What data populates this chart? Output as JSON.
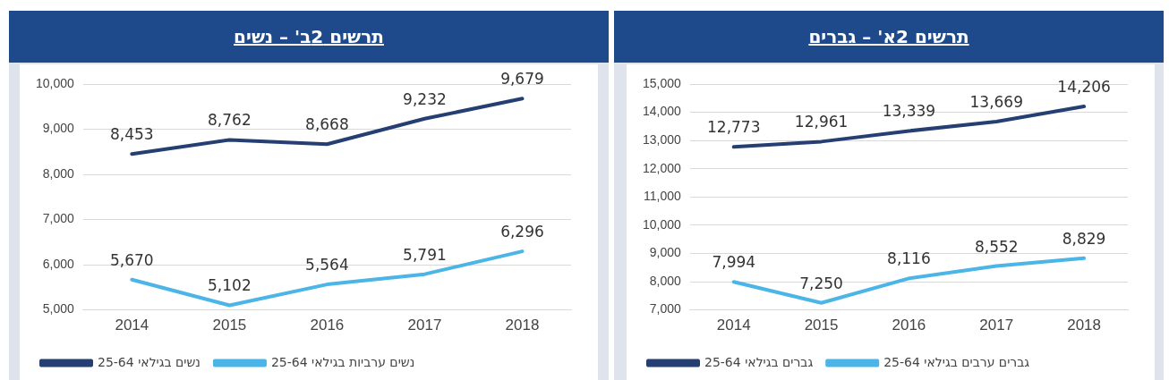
{
  "chart_data": [
    {
      "type": "line",
      "title": "תרשים 2ב' – נשים",
      "categories": [
        "2014",
        "2015",
        "2016",
        "2017",
        "2018"
      ],
      "series": [
        {
          "name": "נשים בגילאי 25-64",
          "color": "#253f72",
          "values": [
            8453,
            8762,
            8668,
            9232,
            9679
          ],
          "value_labels": [
            "8,453",
            "8,762",
            "8,668",
            "9,232",
            "9,679"
          ]
        },
        {
          "name": "נשים ערביות בגילאי 25-64",
          "color": "#4ab5e6",
          "values": [
            5670,
            5102,
            5564,
            5791,
            6296
          ],
          "value_labels": [
            "5,670",
            "5,102",
            "5,564",
            "5,791",
            "6,296"
          ]
        }
      ],
      "ylim": [
        5000,
        10000
      ],
      "yticks": [
        {
          "value": 5000,
          "label": "5,000"
        },
        {
          "value": 6000,
          "label": "6,000"
        },
        {
          "value": 7000,
          "label": "7,000"
        },
        {
          "value": 8000,
          "label": "8,000"
        },
        {
          "value": 9000,
          "label": "9,000"
        },
        {
          "value": 10000,
          "label": "10,000"
        }
      ],
      "grid": "y",
      "legend": "bottom",
      "marker": "none",
      "line_style": "solid"
    },
    {
      "type": "line",
      "title": "תרשים 2א' – גברים",
      "categories": [
        "2014",
        "2015",
        "2016",
        "2017",
        "2018"
      ],
      "series": [
        {
          "name": "גברים בגילאי 25-64",
          "color": "#253f72",
          "values": [
            12773,
            12961,
            13339,
            13669,
            14206
          ],
          "value_labels": [
            "12,773",
            "12,961",
            "13,339",
            "13,669",
            "14,206"
          ]
        },
        {
          "name": "גברים ערבים בגילאי 25-64",
          "color": "#4ab5e6",
          "values": [
            7994,
            7250,
            8116,
            8552,
            8829
          ],
          "value_labels": [
            "7,994",
            "7,250",
            "8,116",
            "8,552",
            "8,829"
          ]
        }
      ],
      "ylim": [
        7000,
        15000
      ],
      "yticks": [
        {
          "value": 7000,
          "label": "7,000"
        },
        {
          "value": 8000,
          "label": "8,000"
        },
        {
          "value": 9000,
          "label": "9,000"
        },
        {
          "value": 10000,
          "label": "10,000"
        },
        {
          "value": 11000,
          "label": "11,000"
        },
        {
          "value": 12000,
          "label": "12,000"
        },
        {
          "value": 13000,
          "label": "13,000"
        },
        {
          "value": 14000,
          "label": "14,000"
        },
        {
          "value": 15000,
          "label": "15,000"
        }
      ],
      "grid": "y",
      "legend": "bottom",
      "marker": "none",
      "line_style": "solid"
    }
  ]
}
